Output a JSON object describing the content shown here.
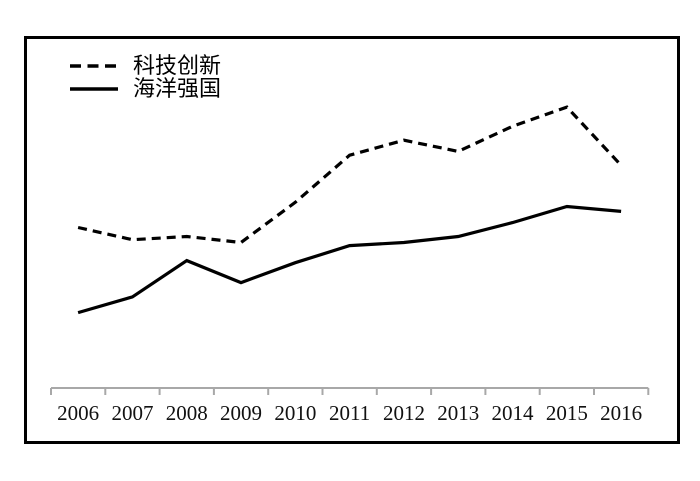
{
  "chart_data": {
    "type": "line",
    "categories": [
      "2006",
      "2007",
      "2008",
      "2009",
      "2010",
      "2011",
      "2012",
      "2013",
      "2014",
      "2015",
      "2016"
    ],
    "series": [
      {
        "name": "科技创新",
        "line_style": "dashed",
        "values": [
          46.0,
          42.5,
          43.4,
          41.7,
          53.2,
          66.7,
          71.0,
          67.8,
          75.0,
          80.5,
          63.8
        ]
      },
      {
        "name": "海洋强国",
        "line_style": "solid",
        "values": [
          21.6,
          26.1,
          36.5,
          30.2,
          35.9,
          40.8,
          41.7,
          43.4,
          47.4,
          52.0,
          50.6
        ]
      }
    ],
    "title": "",
    "xlabel": "",
    "ylabel": "",
    "ylim": [
      0,
      100
    ],
    "y_axis_visible": false,
    "grid": false,
    "legend_position": "top-left",
    "line_color": "#000000",
    "axis_color": "#a8a8a8",
    "tick_label_color": "#111111"
  }
}
